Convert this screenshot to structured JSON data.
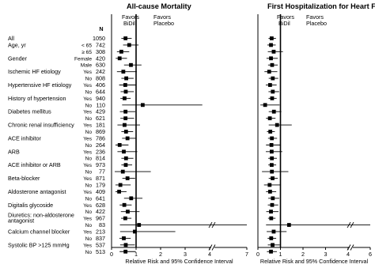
{
  "chart_data": {
    "type": "forest",
    "n_header": "N",
    "rows": [
      {
        "label": "All",
        "sub": "",
        "n": "1050"
      },
      {
        "label": "Age, yr",
        "sub": "< 65",
        "n": "742"
      },
      {
        "label": "",
        "sub": "≥ 65",
        "n": "308"
      },
      {
        "label": "Gender",
        "sub": "Female",
        "n": "420"
      },
      {
        "label": "",
        "sub": "Male",
        "n": "630"
      },
      {
        "label": "Ischemic HF etiology",
        "sub": "Yes",
        "n": "242"
      },
      {
        "label": "",
        "sub": "No",
        "n": "808"
      },
      {
        "label": "Hypertensive HF etiology",
        "sub": "Yes",
        "n": "406"
      },
      {
        "label": "",
        "sub": "No",
        "n": "644"
      },
      {
        "label": "History of hypertension",
        "sub": "Yes",
        "n": "940"
      },
      {
        "label": "",
        "sub": "No",
        "n": "110"
      },
      {
        "label": "Diabetes mellitus",
        "sub": "Yes",
        "n": "429"
      },
      {
        "label": "",
        "sub": "No",
        "n": "621"
      },
      {
        "label": "Chronic renal insufficiency",
        "sub": "Yes",
        "n": "181"
      },
      {
        "label": "",
        "sub": "No",
        "n": "869"
      },
      {
        "label": "ACE inhibitor",
        "sub": "Yes",
        "n": "786"
      },
      {
        "label": "",
        "sub": "No",
        "n": "264"
      },
      {
        "label": "ARB",
        "sub": "Yes",
        "n": "236"
      },
      {
        "label": "",
        "sub": "No",
        "n": "814"
      },
      {
        "label": "ACE inhibitor or ARB",
        "sub": "Yes",
        "n": "973"
      },
      {
        "label": "",
        "sub": "No",
        "n": "77"
      },
      {
        "label": "Beta-blocker",
        "sub": "Yes",
        "n": "871"
      },
      {
        "label": "",
        "sub": "No",
        "n": "179"
      },
      {
        "label": "Aldosterone antagonist",
        "sub": "Yes",
        "n": "409"
      },
      {
        "label": "",
        "sub": "No",
        "n": "641"
      },
      {
        "label": "Digitalis glycoside",
        "sub": "Yes",
        "n": "628"
      },
      {
        "label": "",
        "sub": "No",
        "n": "422"
      },
      {
        "label": "Diuretics: non-aldosterone",
        "label2": "antagonist",
        "sub": "Yes",
        "n": "967"
      },
      {
        "label": "",
        "sub": "No",
        "n": "83"
      },
      {
        "label": "Calcium channel blocker",
        "sub": "Yes",
        "n": "213"
      },
      {
        "label": "",
        "sub": "No",
        "n": "837"
      },
      {
        "label": "Systolic BP >125 mmHg",
        "sub": "Yes",
        "n": "537"
      },
      {
        "label": "",
        "sub": "No",
        "n": "513"
      }
    ],
    "panels": [
      {
        "title": "All-cause Mortality",
        "favors_left": "Favors",
        "favors_left2": "BiDil",
        "favors_right": "Favors",
        "favors_right2": "Placebo",
        "xlabel": "Relative Risk and 95% Confidence Interval",
        "xlim": [
          0,
          7
        ],
        "ticks": [
          "0",
          "1",
          "2",
          "3",
          "4",
          "7"
        ],
        "break_after": 4,
        "reference": 1,
        "estimates": [
          {
            "rr": 0.57,
            "lo": 0.4,
            "hi": 0.82
          },
          {
            "rr": 0.72,
            "lo": 0.47,
            "hi": 1.1
          },
          {
            "rr": 0.4,
            "lo": 0.22,
            "hi": 0.72
          },
          {
            "rr": 0.33,
            "lo": 0.17,
            "hi": 0.63
          },
          {
            "rr": 0.79,
            "lo": 0.51,
            "hi": 1.22
          },
          {
            "rr": 0.48,
            "lo": 0.22,
            "hi": 1.03
          },
          {
            "rr": 0.6,
            "lo": 0.4,
            "hi": 0.9
          },
          {
            "rr": 0.56,
            "lo": 0.31,
            "hi": 1.0
          },
          {
            "rr": 0.58,
            "lo": 0.37,
            "hi": 0.91
          },
          {
            "rr": 0.53,
            "lo": 0.36,
            "hi": 0.78
          },
          {
            "rr": 1.27,
            "lo": 0.43,
            "hi": 3.7
          },
          {
            "rr": 0.57,
            "lo": 0.34,
            "hi": 0.97
          },
          {
            "rr": 0.57,
            "lo": 0.36,
            "hi": 0.92
          },
          {
            "rr": 0.53,
            "lo": 0.24,
            "hi": 1.16
          },
          {
            "rr": 0.59,
            "lo": 0.4,
            "hi": 0.88
          },
          {
            "rr": 0.65,
            "lo": 0.43,
            "hi": 0.98
          },
          {
            "rr": 0.33,
            "lo": 0.16,
            "hi": 0.69
          },
          {
            "rr": 0.5,
            "lo": 0.24,
            "hi": 1.05
          },
          {
            "rr": 0.59,
            "lo": 0.4,
            "hi": 0.89
          },
          {
            "rr": 0.58,
            "lo": 0.4,
            "hi": 0.84
          },
          {
            "rr": 0.46,
            "lo": 0.13,
            "hi": 1.6
          },
          {
            "rr": 0.65,
            "lo": 0.44,
            "hi": 0.96
          },
          {
            "rr": 0.36,
            "lo": 0.16,
            "hi": 0.78
          },
          {
            "rr": 0.31,
            "lo": 0.16,
            "hi": 0.61
          },
          {
            "rr": 0.8,
            "lo": 0.51,
            "hi": 1.26
          },
          {
            "rr": 0.52,
            "lo": 0.33,
            "hi": 0.82
          },
          {
            "rr": 0.66,
            "lo": 0.38,
            "hi": 1.14
          },
          {
            "rr": 0.56,
            "lo": 0.39,
            "hi": 0.81
          },
          {
            "rr": 1.12,
            "lo": 0.34,
            "hi": 7.0
          },
          {
            "rr": 0.95,
            "lo": 0.35,
            "hi": 2.6
          },
          {
            "rr": 0.5,
            "lo": 0.32,
            "hi": 0.78
          },
          {
            "rr": 0.58,
            "lo": 0.35,
            "hi": 0.95
          },
          {
            "rr": 0.57,
            "lo": 0.33,
            "hi": 0.99
          }
        ]
      },
      {
        "title": "First Hospitalization for Heart Failure",
        "favors_left": "Favors",
        "favors_left2": "BiDil",
        "favors_right": "Favors",
        "favors_right2": "Placebo",
        "xlabel": "Relative Risk and 95% Confidence Interval",
        "xlim": [
          0,
          6
        ],
        "ticks": [
          "0",
          "1",
          "2",
          "3",
          "4",
          "6"
        ],
        "break_after": 4,
        "reference": 1,
        "estimates": [
          {
            "rr": 0.61,
            "lo": 0.47,
            "hi": 0.8
          },
          {
            "rr": 0.58,
            "lo": 0.42,
            "hi": 0.79
          },
          {
            "rr": 0.7,
            "lo": 0.44,
            "hi": 1.11
          },
          {
            "rr": 0.58,
            "lo": 0.38,
            "hi": 0.88
          },
          {
            "rr": 0.63,
            "lo": 0.45,
            "hi": 0.88
          },
          {
            "rr": 0.5,
            "lo": 0.29,
            "hi": 0.86
          },
          {
            "rr": 0.66,
            "lo": 0.48,
            "hi": 0.9
          },
          {
            "rr": 0.54,
            "lo": 0.35,
            "hi": 0.83
          },
          {
            "rr": 0.66,
            "lo": 0.47,
            "hi": 0.94
          },
          {
            "rr": 0.63,
            "lo": 0.47,
            "hi": 0.83
          },
          {
            "rr": 0.32,
            "lo": 0.11,
            "hi": 0.96
          },
          {
            "rr": 0.71,
            "lo": 0.48,
            "hi": 1.04
          },
          {
            "rr": 0.53,
            "lo": 0.36,
            "hi": 0.78
          },
          {
            "rr": 0.85,
            "lo": 0.48,
            "hi": 1.5
          },
          {
            "rr": 0.55,
            "lo": 0.4,
            "hi": 0.75
          },
          {
            "rr": 0.62,
            "lo": 0.45,
            "hi": 0.85
          },
          {
            "rr": 0.6,
            "lo": 0.36,
            "hi": 0.99
          },
          {
            "rr": 0.61,
            "lo": 0.35,
            "hi": 1.08
          },
          {
            "rr": 0.62,
            "lo": 0.46,
            "hi": 0.84
          },
          {
            "rr": 0.61,
            "lo": 0.46,
            "hi": 0.81
          },
          {
            "rr": 0.62,
            "lo": 0.18,
            "hi": 1.35
          },
          {
            "rr": 0.65,
            "lo": 0.48,
            "hi": 0.88
          },
          {
            "rr": 0.52,
            "lo": 0.27,
            "hi": 0.99
          },
          {
            "rr": 0.54,
            "lo": 0.36,
            "hi": 0.81
          },
          {
            "rr": 0.66,
            "lo": 0.46,
            "hi": 0.95
          },
          {
            "rr": 0.63,
            "lo": 0.44,
            "hi": 0.9
          },
          {
            "rr": 0.58,
            "lo": 0.37,
            "hi": 0.91
          },
          {
            "rr": 0.59,
            "lo": 0.45,
            "hi": 0.78
          },
          {
            "rr": 1.38,
            "lo": 0.36,
            "hi": 6.0
          },
          {
            "rr": 0.7,
            "lo": 0.39,
            "hi": 1.27
          },
          {
            "rr": 0.59,
            "lo": 0.43,
            "hi": 0.81
          },
          {
            "rr": 0.65,
            "lo": 0.44,
            "hi": 0.97
          },
          {
            "rr": 0.58,
            "lo": 0.4,
            "hi": 0.84
          }
        ]
      }
    ]
  }
}
